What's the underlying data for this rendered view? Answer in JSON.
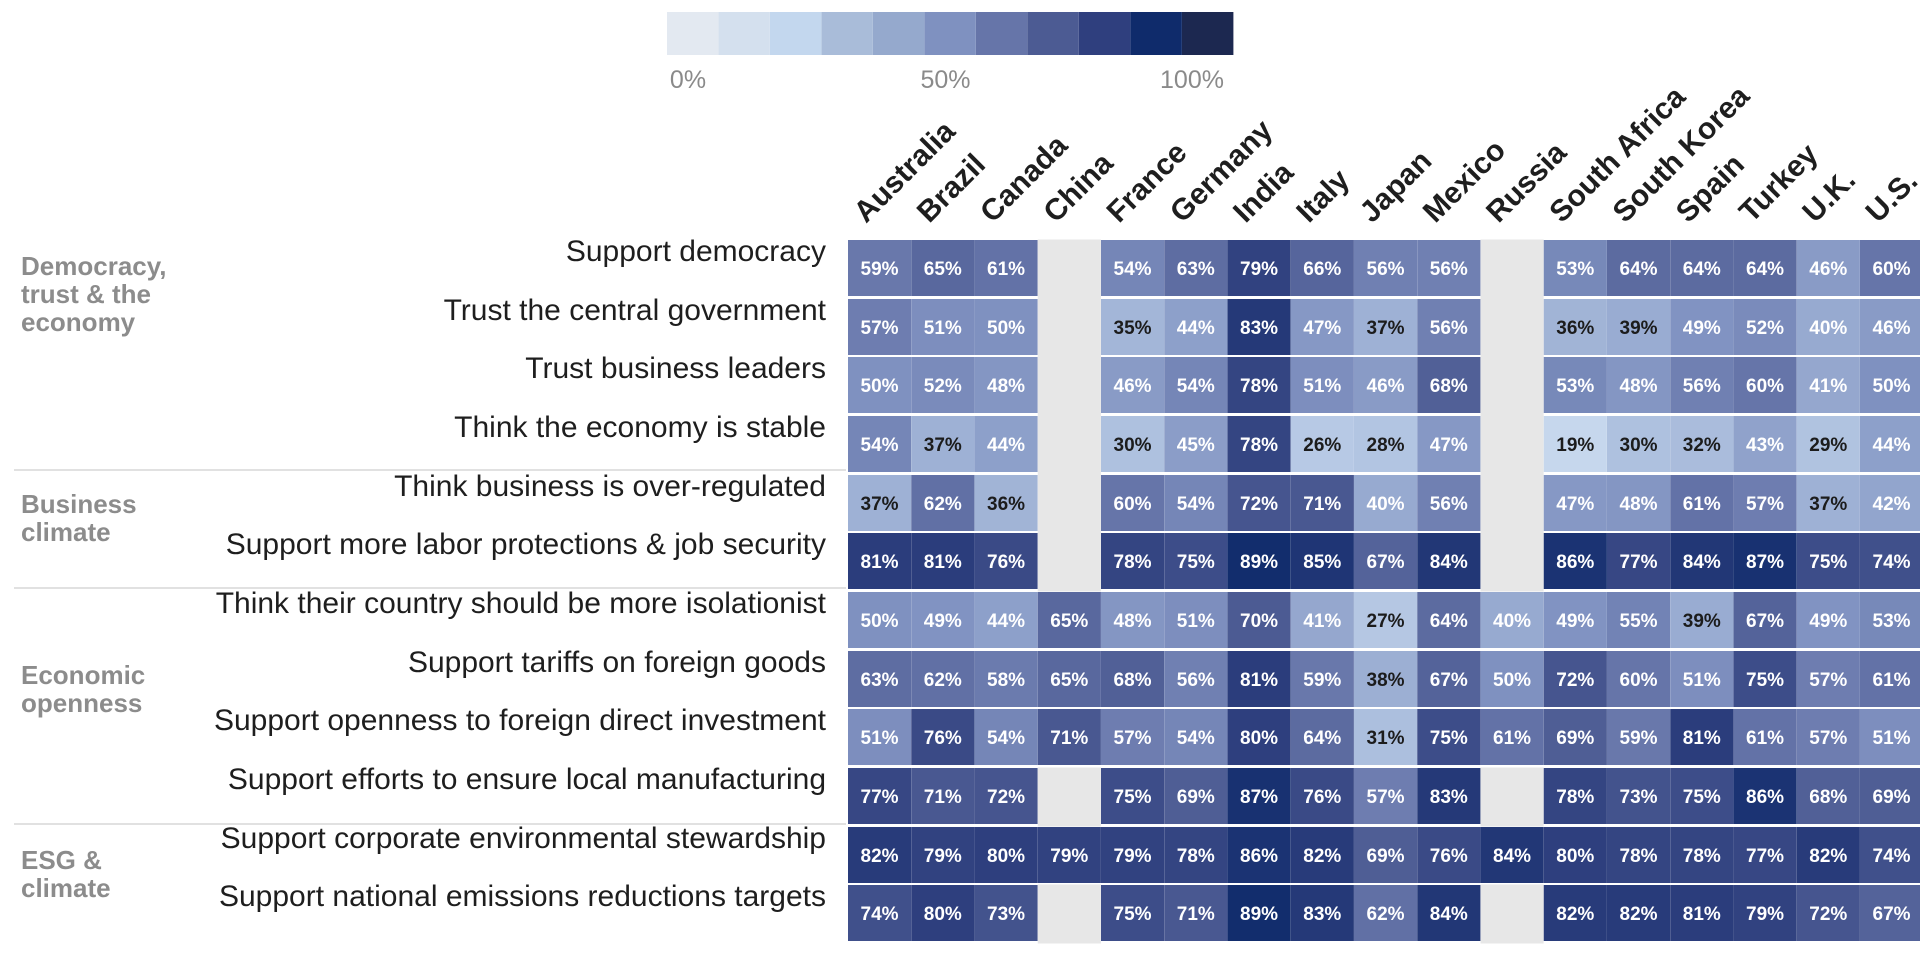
{
  "chart_data": {
    "type": "heatmap",
    "legend": {
      "colors": [
        "#e3e9f1",
        "#d4e0ee",
        "#c3d7ee",
        "#a9bcd9",
        "#95a9cd",
        "#7f91c0",
        "#6675a9",
        "#4c5b93",
        "#2f3f7e",
        "#0f2b6b",
        "#1c2850"
      ],
      "tick_labels": [
        "0%",
        "50%",
        "100%"
      ]
    },
    "columns": [
      "Australia",
      "Brazil",
      "Canada",
      "China",
      "France",
      "Germany",
      "India",
      "Italy",
      "Japan",
      "Mexico",
      "Russia",
      "South Africa",
      "South Korea",
      "Spain",
      "Turkey",
      "U.K.",
      "U.S."
    ],
    "groups": [
      {
        "label": "Democracy, trust & the economy",
        "label_lines": [
          "Democracy,",
          "trust & the",
          "economy"
        ],
        "rows": [
          0,
          1,
          2,
          3
        ]
      },
      {
        "label": "Business climate",
        "label_lines": [
          "Business",
          "climate"
        ],
        "rows": [
          4,
          5
        ]
      },
      {
        "label": "Economic openness",
        "label_lines": [
          "Economic",
          "openness"
        ],
        "rows": [
          6,
          7,
          8,
          9
        ]
      },
      {
        "label": "ESG & climate",
        "label_lines": [
          "ESG &",
          "climate"
        ],
        "rows": [
          10,
          11
        ]
      }
    ],
    "rows": [
      {
        "label": "Support democracy",
        "values": [
          59,
          65,
          61,
          null,
          54,
          63,
          79,
          66,
          56,
          56,
          null,
          53,
          64,
          64,
          64,
          46,
          60
        ]
      },
      {
        "label": "Trust the central government",
        "values": [
          57,
          51,
          50,
          null,
          35,
          44,
          83,
          47,
          37,
          56,
          null,
          36,
          39,
          49,
          52,
          40,
          46
        ]
      },
      {
        "label": "Trust business leaders",
        "values": [
          50,
          52,
          48,
          null,
          46,
          54,
          78,
          51,
          46,
          68,
          null,
          53,
          48,
          56,
          60,
          41,
          50
        ]
      },
      {
        "label": "Think the economy is stable",
        "values": [
          54,
          37,
          44,
          null,
          30,
          45,
          78,
          26,
          28,
          47,
          null,
          19,
          30,
          32,
          43,
          29,
          44
        ]
      },
      {
        "label": "Think business is over-regulated",
        "values": [
          37,
          62,
          36,
          null,
          60,
          54,
          72,
          71,
          40,
          56,
          null,
          47,
          48,
          61,
          57,
          37,
          42
        ]
      },
      {
        "label": "Support more labor protections & job security",
        "values": [
          81,
          81,
          76,
          null,
          78,
          75,
          89,
          85,
          67,
          84,
          null,
          86,
          77,
          84,
          87,
          75,
          74
        ]
      },
      {
        "label": "Think their country should be more isolationist",
        "values": [
          50,
          49,
          44,
          65,
          48,
          51,
          70,
          41,
          27,
          64,
          40,
          49,
          55,
          39,
          67,
          49,
          53
        ]
      },
      {
        "label": "Support tariffs on foreign goods",
        "values": [
          63,
          62,
          58,
          65,
          68,
          56,
          81,
          59,
          38,
          67,
          50,
          72,
          60,
          51,
          75,
          57,
          61
        ]
      },
      {
        "label": "Support openness to foreign direct investment",
        "values": [
          51,
          76,
          54,
          71,
          57,
          54,
          80,
          64,
          31,
          75,
          61,
          69,
          59,
          81,
          61,
          57,
          51
        ]
      },
      {
        "label": "Support efforts to ensure local manufacturing",
        "values": [
          77,
          71,
          72,
          null,
          75,
          69,
          87,
          76,
          57,
          83,
          null,
          78,
          73,
          75,
          86,
          68,
          69
        ]
      },
      {
        "label": "Support corporate environmental stewardship",
        "values": [
          82,
          79,
          80,
          79,
          79,
          78,
          86,
          82,
          69,
          76,
          84,
          80,
          78,
          78,
          77,
          82,
          74
        ]
      },
      {
        "label": "Support national emissions reductions targets",
        "values": [
          74,
          80,
          73,
          null,
          75,
          71,
          89,
          83,
          62,
          84,
          null,
          82,
          82,
          81,
          79,
          72,
          67
        ]
      }
    ],
    "value_format": "percent",
    "value_range": [
      0,
      100
    ],
    "missing_color": "#e7e7e7"
  }
}
